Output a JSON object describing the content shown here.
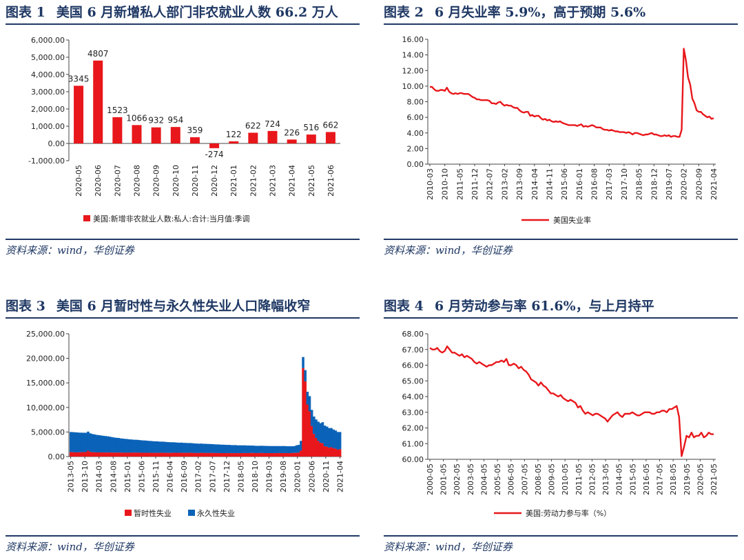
{
  "panels": [
    {
      "fig": "图表 1",
      "title": "美国 6 月新增私人部门非农就业人数 66.2 万人",
      "source": "资料来源：wind，华创证券"
    },
    {
      "fig": "图表 2",
      "title": "6 月失业率 5.9%，高于预期 5.6%",
      "source": "资料来源：wind，华创证券"
    },
    {
      "fig": "图表 3",
      "title": "美国 6 月暂时性与永久性失业人口降幅收窄",
      "source": "资料来源：wind，华创证券"
    },
    {
      "fig": "图表 4",
      "title": "6 月劳动参与率 61.6%，与上月持平",
      "source": "资料来源：wind，华创证券"
    }
  ],
  "colors": {
    "red": "#e8171b",
    "blue": "#0b63b8",
    "navy": "#1f3864"
  },
  "chart_data": [
    {
      "type": "bar",
      "categories": [
        "2020-05",
        "2020-06",
        "2020-07",
        "2020-08",
        "2020-09",
        "2020-10",
        "2020-11",
        "2020-12",
        "2021-01",
        "2021-02",
        "2021-03",
        "2021-04",
        "2021-05",
        "2021-06"
      ],
      "values": [
        3345,
        4807,
        1523,
        1066,
        932,
        954,
        359,
        -274,
        122,
        622,
        724,
        226,
        516,
        662
      ],
      "ylim": [
        -1000,
        6000
      ],
      "yticks": [
        "-1,000.00",
        "0.00",
        "1,000.00",
        "2,000.00",
        "3,000.00",
        "4,000.00",
        "5,000.00",
        "6,000.00"
      ],
      "yticks_values": [
        -1000,
        0,
        1000,
        2000,
        3000,
        4000,
        5000,
        6000
      ],
      "legend": "美国:新增非农就业人数:私人:合计:当月值:季调",
      "legend_position": "bottom"
    },
    {
      "type": "line",
      "xticks": [
        "2010-03",
        "2010-10",
        "2011-05",
        "2011-12",
        "2012-07",
        "2013-02",
        "2013-09",
        "2014-04",
        "2014-11",
        "2015-06",
        "2016-01",
        "2016-08",
        "2017-03",
        "2017-10",
        "2018-05",
        "2018-12",
        "2019-07",
        "2020-02",
        "2020-09",
        "2021-04"
      ],
      "series": [
        {
          "name": "美国失业率",
          "x_start": "2010-03",
          "values": [
            9.9,
            9.9,
            9.6,
            9.4,
            9.4,
            9.5,
            9.5,
            9.4,
            9.8,
            9.3,
            9.1,
            9.0,
            9.1,
            9.0,
            9.1,
            9.1,
            9.0,
            9.0,
            9.0,
            8.8,
            8.6,
            8.5,
            8.3,
            8.3,
            8.2,
            8.2,
            8.2,
            8.2,
            8.1,
            7.8,
            7.8,
            7.7,
            7.9,
            8.0,
            7.7,
            7.5,
            7.6,
            7.5,
            7.5,
            7.3,
            7.2,
            7.2,
            6.9,
            6.7,
            6.6,
            6.7,
            6.7,
            6.2,
            6.3,
            6.1,
            6.2,
            6.2,
            5.9,
            5.7,
            5.8,
            5.6,
            5.7,
            5.5,
            5.4,
            5.5,
            5.4,
            5.5,
            5.3,
            5.2,
            5.1,
            5.0,
            5.0,
            5.0,
            5.0,
            4.9,
            5.0,
            5.1,
            4.8,
            4.9,
            4.8,
            4.9,
            5.0,
            4.9,
            4.7,
            4.7,
            4.7,
            4.5,
            4.4,
            4.4,
            4.3,
            4.4,
            4.3,
            4.2,
            4.2,
            4.1,
            4.1,
            4.1,
            4.0,
            4.1,
            4.0,
            3.8,
            4.0,
            4.0,
            3.9,
            3.8,
            3.7,
            3.8,
            3.8,
            3.9,
            4.0,
            3.8,
            3.8,
            3.7,
            3.6,
            3.6,
            3.7,
            3.6,
            3.7,
            3.5,
            3.6,
            3.6,
            3.5,
            3.5,
            4.4,
            14.8,
            13.3,
            11.1,
            10.2,
            8.4,
            7.8,
            6.9,
            6.7,
            6.7,
            6.4,
            6.2,
            6.0,
            6.1,
            5.8,
            5.9
          ]
        }
      ],
      "ylim": [
        0,
        16
      ],
      "yticks": [
        "0.00",
        "2.00",
        "4.00",
        "6.00",
        "8.00",
        "10.00",
        "12.00",
        "14.00",
        "16.00"
      ],
      "yticks_values": [
        0,
        2,
        4,
        6,
        8,
        10,
        12,
        14,
        16
      ],
      "legend": "美国失业率",
      "legend_position": "bottom"
    },
    {
      "type": "bar",
      "stacked": true,
      "xticks": [
        "2013-05",
        "2013-10",
        "2014-03",
        "2014-08",
        "2015-01",
        "2015-06",
        "2015-11",
        "2016-04",
        "2016-09",
        "2017-02",
        "2017-07",
        "2017-12",
        "2018-05",
        "2018-10",
        "2019-03",
        "2019-08",
        "2020-01",
        "2020-06",
        "2020-11",
        "2021-04"
      ],
      "series": [
        {
          "name": "暂时性失业",
          "x_start": "2013-05",
          "values": [
            900,
            880,
            860,
            850,
            870,
            880,
            900,
            920,
            1200,
            950,
            870,
            860,
            850,
            840,
            830,
            830,
            830,
            820,
            830,
            810,
            800,
            800,
            810,
            800,
            790,
            780,
            790,
            780,
            800,
            790,
            800,
            790,
            780,
            770,
            780,
            770,
            760,
            770,
            760,
            740,
            760,
            750,
            780,
            760,
            750,
            740,
            740,
            760,
            780,
            770,
            760,
            780,
            740,
            760,
            740,
            780,
            760,
            720,
            720,
            720,
            760,
            740,
            730,
            720,
            730,
            740,
            720,
            710,
            720,
            700,
            700,
            700,
            690,
            700,
            680,
            690,
            700,
            680,
            700,
            700,
            720,
            700,
            710,
            720,
            730,
            700,
            700,
            720,
            720,
            710,
            700,
            700,
            700,
            700,
            690,
            700,
            720,
            700,
            710,
            700,
            700,
            700,
            720,
            740,
            760,
            800,
            1200,
            18000,
            15300,
            10600,
            9200,
            6200,
            4600,
            3800,
            3200,
            2800,
            2700,
            2100,
            2000,
            1800,
            1900,
            1700,
            1600,
            1400,
            1500
          ]
        },
        {
          "name": "永久性失业",
          "x_start": "2013-05",
          "values": [
            4100,
            4100,
            4080,
            4060,
            4000,
            3980,
            3950,
            3930,
            3880,
            3780,
            3720,
            3650,
            3560,
            3520,
            3460,
            3400,
            3350,
            3300,
            3220,
            3150,
            3080,
            3020,
            2980,
            2900,
            2860,
            2820,
            2780,
            2720,
            2680,
            2640,
            2620,
            2600,
            2560,
            2520,
            2500,
            2470,
            2430,
            2400,
            2360,
            2360,
            2330,
            2290,
            2260,
            2260,
            2220,
            2200,
            2170,
            2150,
            2110,
            2080,
            2060,
            2060,
            2050,
            2020,
            2010,
            1980,
            1960,
            1950,
            1930,
            1900,
            1890,
            1860,
            1870,
            1850,
            1820,
            1800,
            1780,
            1760,
            1750,
            1730,
            1720,
            1700,
            1680,
            1680,
            1650,
            1640,
            1630,
            1600,
            1590,
            1580,
            1570,
            1550,
            1540,
            1520,
            1500,
            1490,
            1480,
            1470,
            1480,
            1470,
            1460,
            1450,
            1440,
            1440,
            1450,
            1430,
            1420,
            1430,
            1440,
            1420,
            1400,
            1400,
            1380,
            1390,
            1540,
            1580,
            2000,
            2270,
            2300,
            2600,
            3100,
            3300,
            3550,
            3750,
            3900,
            4000,
            4300,
            4200,
            4100,
            4000,
            3900,
            3800,
            3700,
            3600,
            3500
          ]
        }
      ],
      "ylim": [
        0,
        25000
      ],
      "yticks": [
        "0.00",
        "5,000.00",
        "10,000.00",
        "15,000.00",
        "20,000.00",
        "25,000.00"
      ],
      "yticks_values": [
        0,
        5000,
        10000,
        15000,
        20000,
        25000
      ],
      "legend": [
        "暂时性失业",
        "永久性失业"
      ],
      "legend_position": "bottom"
    },
    {
      "type": "line",
      "xticks": [
        "2000-05",
        "2001-05",
        "2002-05",
        "2003-05",
        "2004-05",
        "2005-05",
        "2006-05",
        "2007-05",
        "2008-05",
        "2009-05",
        "2010-05",
        "2011-05",
        "2012-05",
        "2013-05",
        "2014-05",
        "2015-05",
        "2016-05",
        "2017-05",
        "2018-05",
        "2019-05",
        "2020-05",
        "2021-05"
      ],
      "series": [
        {
          "name": "美国:劳动力参与率（%）",
          "x_start": "2000-05",
          "values": [
            67.1,
            67.0,
            67.0,
            67.1,
            66.9,
            66.8,
            66.9,
            67.2,
            67.0,
            66.8,
            66.8,
            66.7,
            66.6,
            66.7,
            66.5,
            66.6,
            66.5,
            66.4,
            66.2,
            66.1,
            66.2,
            66.1,
            66.0,
            65.9,
            66.0,
            66.0,
            66.1,
            66.2,
            66.2,
            66.3,
            66.2,
            66.4,
            66.0,
            66.0,
            66.1,
            66.0,
            65.8,
            65.9,
            65.7,
            65.6,
            65.4,
            65.1,
            65.0,
            64.9,
            64.7,
            64.9,
            64.7,
            64.6,
            64.4,
            64.2,
            64.2,
            64.1,
            64.0,
            64.1,
            63.9,
            63.8,
            63.7,
            63.8,
            63.7,
            63.6,
            63.3,
            63.4,
            63.1,
            62.9,
            63.0,
            62.9,
            62.8,
            62.9,
            62.9,
            62.8,
            62.7,
            62.6,
            62.4,
            62.6,
            62.8,
            62.9,
            63.0,
            62.8,
            62.7,
            62.9,
            62.9,
            62.9,
            63.0,
            62.9,
            62.8,
            62.8,
            62.9,
            63.0,
            63.0,
            63.0,
            62.9,
            62.9,
            63.0,
            63.0,
            63.1,
            63.1,
            63.0,
            63.2,
            63.2,
            63.3,
            63.4,
            62.7,
            60.2,
            60.8,
            61.5,
            61.4,
            61.7,
            61.4,
            61.5,
            61.5,
            61.7,
            61.4,
            61.5,
            61.7,
            61.6,
            61.6
          ]
        }
      ],
      "ylim": [
        60,
        68
      ],
      "yticks": [
        "60.00",
        "61.00",
        "62.00",
        "63.00",
        "64.00",
        "65.00",
        "66.00",
        "67.00",
        "68.00"
      ],
      "yticks_values": [
        60,
        61,
        62,
        63,
        64,
        65,
        66,
        67,
        68
      ],
      "legend": "美国:劳动力参与率（%）",
      "legend_position": "bottom"
    }
  ]
}
